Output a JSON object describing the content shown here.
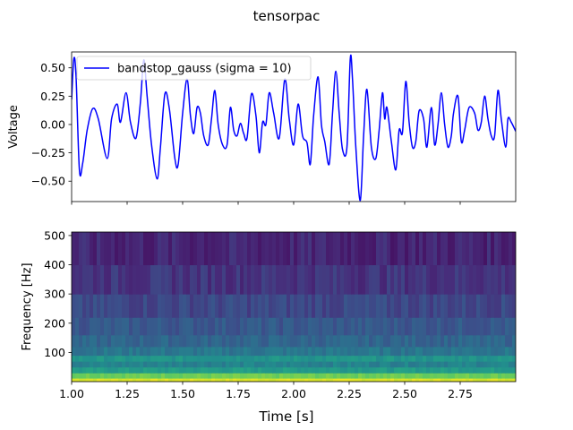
{
  "figure": {
    "title": "tensorpac"
  },
  "chart_data": [
    {
      "type": "line",
      "panel": "top",
      "title": "",
      "xlabel": "",
      "ylabel": "Voltage",
      "xlim": [
        1.0,
        3.0
      ],
      "ylim": [
        -0.68,
        0.64
      ],
      "yticks": [
        -0.5,
        -0.25,
        0.0,
        0.25,
        0.5
      ],
      "ytick_labels": [
        "−0.50",
        "−0.25",
        "0.00",
        "0.25",
        "0.50"
      ],
      "xticks": [
        1.0,
        1.25,
        1.5,
        1.75,
        2.0,
        2.25,
        2.5,
        2.75
      ],
      "grid": false,
      "legend": {
        "position": "upper-left",
        "entries": [
          "bandstop_gauss (sigma = 10)"
        ]
      },
      "series": [
        {
          "name": "bandstop_gauss (sigma = 10)",
          "color": "#0000ff",
          "points": [
            [
              1.0,
              0.22
            ],
            [
              1.01,
              0.58
            ],
            [
              1.02,
              0.42
            ],
            [
              1.035,
              -0.4
            ],
            [
              1.05,
              -0.34
            ],
            [
              1.07,
              -0.05
            ],
            [
              1.095,
              0.14
            ],
            [
              1.12,
              0.05
            ],
            [
              1.16,
              -0.3
            ],
            [
              1.18,
              0.05
            ],
            [
              1.205,
              0.18
            ],
            [
              1.22,
              0.02
            ],
            [
              1.245,
              0.28
            ],
            [
              1.265,
              0.02
            ],
            [
              1.29,
              -0.12
            ],
            [
              1.31,
              0.2
            ],
            [
              1.325,
              0.57
            ],
            [
              1.34,
              0.25
            ],
            [
              1.36,
              -0.18
            ],
            [
              1.385,
              -0.48
            ],
            [
              1.4,
              -0.2
            ],
            [
              1.42,
              0.27
            ],
            [
              1.44,
              0.14
            ],
            [
              1.465,
              -0.3
            ],
            [
              1.48,
              -0.35
            ],
            [
              1.5,
              0.1
            ],
            [
              1.52,
              0.4
            ],
            [
              1.535,
              0.08
            ],
            [
              1.55,
              -0.08
            ],
            [
              1.565,
              0.15
            ],
            [
              1.58,
              0.1
            ],
            [
              1.595,
              -0.1
            ],
            [
              1.615,
              -0.18
            ],
            [
              1.63,
              0.05
            ],
            [
              1.645,
              0.3
            ],
            [
              1.66,
              0.0
            ],
            [
              1.68,
              -0.18
            ],
            [
              1.7,
              -0.18
            ],
            [
              1.715,
              0.15
            ],
            [
              1.73,
              -0.05
            ],
            [
              1.745,
              -0.1
            ],
            [
              1.76,
              0.01
            ],
            [
              1.775,
              -0.08
            ],
            [
              1.79,
              -0.12
            ],
            [
              1.81,
              0.27
            ],
            [
              1.83,
              0.08
            ],
            [
              1.845,
              -0.25
            ],
            [
              1.86,
              0.02
            ],
            [
              1.875,
              0.0
            ],
            [
              1.89,
              0.28
            ],
            [
              1.91,
              0.1
            ],
            [
              1.935,
              -0.12
            ],
            [
              1.96,
              0.4
            ],
            [
              1.98,
              0.05
            ],
            [
              2.0,
              -0.18
            ],
            [
              2.02,
              0.18
            ],
            [
              2.04,
              -0.1
            ],
            [
              2.06,
              -0.16
            ],
            [
              2.075,
              -0.35
            ],
            [
              2.09,
              0.08
            ],
            [
              2.11,
              0.42
            ],
            [
              2.125,
              0.0
            ],
            [
              2.14,
              -0.15
            ],
            [
              2.16,
              -0.35
            ],
            [
              2.175,
              0.1
            ],
            [
              2.19,
              0.47
            ],
            [
              2.205,
              0.1
            ],
            [
              2.22,
              -0.22
            ],
            [
              2.24,
              -0.2
            ],
            [
              2.255,
              0.58
            ],
            [
              2.265,
              0.4
            ],
            [
              2.28,
              -0.2
            ],
            [
              2.3,
              -0.67
            ],
            [
              2.315,
              -0.1
            ],
            [
              2.33,
              0.31
            ],
            [
              2.35,
              -0.2
            ],
            [
              2.37,
              -0.3
            ],
            [
              2.385,
              -0.05
            ],
            [
              2.4,
              0.28
            ],
            [
              2.41,
              0.05
            ],
            [
              2.42,
              0.15
            ],
            [
              2.44,
              -0.15
            ],
            [
              2.46,
              -0.4
            ],
            [
              2.475,
              -0.05
            ],
            [
              2.49,
              -0.07
            ],
            [
              2.505,
              0.38
            ],
            [
              2.52,
              0.02
            ],
            [
              2.535,
              -0.2
            ],
            [
              2.55,
              -0.15
            ],
            [
              2.565,
              0.12
            ],
            [
              2.585,
              0.05
            ],
            [
              2.6,
              -0.2
            ],
            [
              2.62,
              0.15
            ],
            [
              2.635,
              -0.18
            ],
            [
              2.65,
              0.0
            ],
            [
              2.665,
              0.28
            ],
            [
              2.68,
              0.0
            ],
            [
              2.695,
              -0.2
            ],
            [
              2.71,
              -0.1
            ],
            [
              2.72,
              0.1
            ],
            [
              2.74,
              0.25
            ],
            [
              2.755,
              -0.15
            ],
            [
              2.77,
              -0.05
            ],
            [
              2.79,
              0.15
            ],
            [
              2.815,
              0.1
            ],
            [
              2.83,
              -0.05
            ],
            [
              2.845,
              0.02
            ],
            [
              2.86,
              0.25
            ],
            [
              2.875,
              0.05
            ],
            [
              2.89,
              -0.1
            ],
            [
              2.905,
              -0.1
            ],
            [
              2.92,
              0.3
            ],
            [
              2.935,
              0.05
            ],
            [
              2.955,
              -0.2
            ],
            [
              2.965,
              0.05
            ],
            [
              2.98,
              0.02
            ],
            [
              3.0,
              -0.06
            ]
          ]
        }
      ]
    },
    {
      "type": "heatmap",
      "panel": "bottom",
      "title": "",
      "xlabel": "Time [s]",
      "ylabel": "Frequency [Hz]",
      "xlim": [
        1.0,
        3.0
      ],
      "ylim": [
        0,
        512
      ],
      "xticks": [
        1.0,
        1.25,
        1.5,
        1.75,
        2.0,
        2.25,
        2.5,
        2.75
      ],
      "xtick_labels": [
        "1.00",
        "1.25",
        "1.50",
        "1.75",
        "2.00",
        "2.25",
        "2.50",
        "2.75"
      ],
      "yticks": [
        100,
        200,
        300,
        400,
        500
      ],
      "ytick_labels": [
        "100",
        "200",
        "300",
        "400",
        "500"
      ],
      "colormap": "viridis",
      "grid": false,
      "bands": [
        {
          "freq_range": [
            0,
            12
          ],
          "level": 0.95,
          "color": "#d2e21b"
        },
        {
          "freq_range": [
            12,
            30
          ],
          "level": 0.78,
          "color": "#8fd744"
        },
        {
          "freq_range": [
            30,
            50
          ],
          "level": 0.55,
          "color": "#35b779"
        },
        {
          "freq_range": [
            50,
            70
          ],
          "level": 0.45,
          "color": "#1f9e89"
        },
        {
          "freq_range": [
            70,
            90
          ],
          "level": 0.52,
          "color": "#22a884"
        },
        {
          "freq_range": [
            90,
            120
          ],
          "level": 0.4,
          "color": "#26828e"
        },
        {
          "freq_range": [
            120,
            160
          ],
          "level": 0.33,
          "color": "#2a788e"
        },
        {
          "freq_range": [
            160,
            220
          ],
          "level": 0.28,
          "color": "#2d708e"
        },
        {
          "freq_range": [
            220,
            300
          ],
          "level": 0.22,
          "color": "#33638d"
        },
        {
          "freq_range": [
            300,
            400
          ],
          "level": 0.16,
          "color": "#39568c"
        },
        {
          "freq_range": [
            400,
            512
          ],
          "level": 0.11,
          "color": "#404688"
        }
      ]
    }
  ]
}
